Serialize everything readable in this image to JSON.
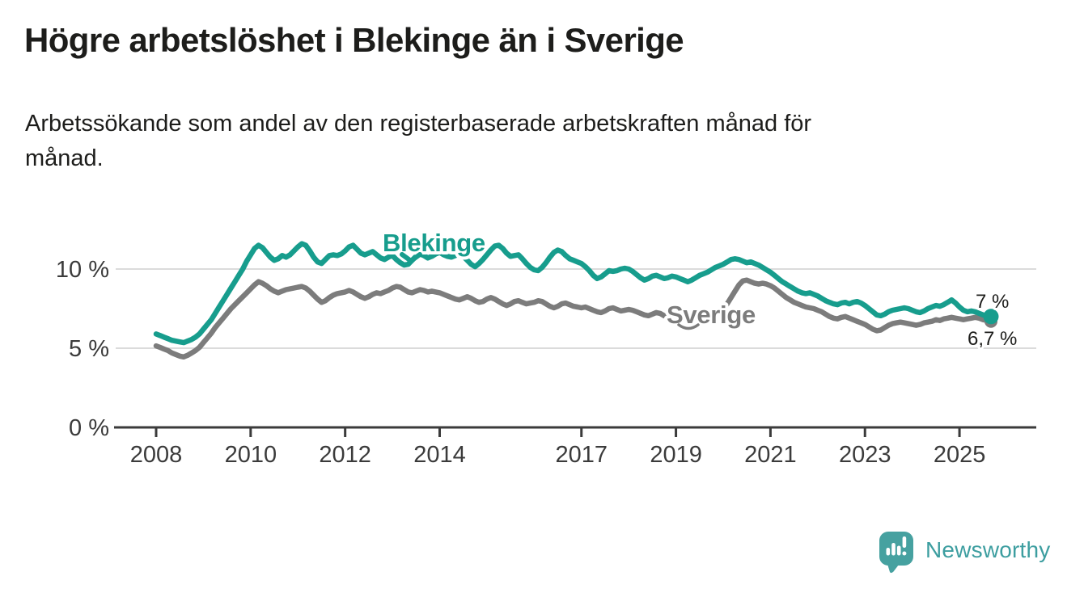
{
  "header": {
    "title": "Högre arbetslöshet i Blekinge än i Sverige",
    "subtitle_line1": "Arbetssökande som andel av den registerbaserade arbetskraften månad för",
    "subtitle_line2": "månad."
  },
  "chart_data": {
    "type": "line",
    "title": "Högre arbetslöshet i Blekinge än i Sverige",
    "subtitle": "Arbetssökande som andel av den registerbaserade arbetskraften månad för månad.",
    "unit": "%",
    "grid": "horizontal",
    "legend_position": "inline-labels-on-lines",
    "x_axis": {
      "interval": "monthly",
      "start_year": 2008,
      "start_month": 1,
      "end_year": 2025,
      "end_month": 9,
      "ticks": [
        {
          "year": 2008,
          "label": "2008"
        },
        {
          "year": 2010,
          "label": "2010"
        },
        {
          "year": 2012,
          "label": "2012"
        },
        {
          "year": 2014,
          "label": "2014"
        },
        {
          "year": 2017,
          "label": "2017"
        },
        {
          "year": 2019,
          "label": "2019"
        },
        {
          "year": 2021,
          "label": "2021"
        },
        {
          "year": 2023,
          "label": "2023"
        },
        {
          "year": 2025,
          "label": "2025"
        }
      ]
    },
    "y_axis": {
      "range": [
        0,
        12.5
      ],
      "ticks": [
        {
          "value": 10,
          "label": "10 %"
        },
        {
          "value": 5,
          "label": "5 %"
        },
        {
          "value": 0,
          "label": "0 %"
        }
      ]
    },
    "series": [
      {
        "name": "Blekinge",
        "color": "#179d8d",
        "end_label": "7 %",
        "end_value": 7.0,
        "end_dot_radius": 9.5,
        "values": [
          5.9,
          5.8,
          5.7,
          5.6,
          5.5,
          5.45,
          5.4,
          5.35,
          5.45,
          5.55,
          5.7,
          5.9,
          6.2,
          6.5,
          6.8,
          7.2,
          7.6,
          8.0,
          8.4,
          8.8,
          9.2,
          9.6,
          10.0,
          10.5,
          10.9,
          11.3,
          11.5,
          11.35,
          11.05,
          10.75,
          10.55,
          10.65,
          10.85,
          10.75,
          10.9,
          11.15,
          11.4,
          11.6,
          11.5,
          11.15,
          10.75,
          10.45,
          10.35,
          10.6,
          10.85,
          10.9,
          10.85,
          10.95,
          11.15,
          11.4,
          11.5,
          11.25,
          11.0,
          10.9,
          11.0,
          11.1,
          10.9,
          10.7,
          10.6,
          10.75,
          10.85,
          10.6,
          10.4,
          10.25,
          10.3,
          10.55,
          10.8,
          10.95,
          10.85,
          10.7,
          10.8,
          10.95,
          11.05,
          10.9,
          10.8,
          10.75,
          10.85,
          10.95,
          10.8,
          10.55,
          10.3,
          10.15,
          10.35,
          10.6,
          10.9,
          11.2,
          11.45,
          11.5,
          11.3,
          11.0,
          10.8,
          10.85,
          10.9,
          10.65,
          10.35,
          10.1,
          9.95,
          9.9,
          10.1,
          10.4,
          10.75,
          11.05,
          11.2,
          11.1,
          10.85,
          10.65,
          10.55,
          10.45,
          10.35,
          10.15,
          9.9,
          9.6,
          9.4,
          9.5,
          9.7,
          9.9,
          9.85,
          9.9,
          10.0,
          10.05,
          10.0,
          9.85,
          9.65,
          9.45,
          9.3,
          9.4,
          9.55,
          9.6,
          9.5,
          9.4,
          9.45,
          9.55,
          9.5,
          9.4,
          9.3,
          9.2,
          9.3,
          9.45,
          9.6,
          9.7,
          9.8,
          9.95,
          10.1,
          10.2,
          10.3,
          10.45,
          10.6,
          10.65,
          10.6,
          10.5,
          10.4,
          10.45,
          10.35,
          10.25,
          10.1,
          9.95,
          9.8,
          9.6,
          9.4,
          9.2,
          9.05,
          8.9,
          8.75,
          8.6,
          8.5,
          8.45,
          8.5,
          8.4,
          8.3,
          8.15,
          8.0,
          7.9,
          7.8,
          7.75,
          7.85,
          7.9,
          7.8,
          7.9,
          7.95,
          7.85,
          7.7,
          7.5,
          7.3,
          7.1,
          7.05,
          7.15,
          7.3,
          7.4,
          7.45,
          7.5,
          7.55,
          7.5,
          7.4,
          7.3,
          7.25,
          7.35,
          7.5,
          7.6,
          7.7,
          7.65,
          7.75,
          7.9,
          8.05,
          7.85,
          7.6,
          7.4,
          7.3,
          7.35,
          7.3,
          7.2,
          7.1,
          7.05,
          7.0
        ]
      },
      {
        "name": "Sverige",
        "color": "#7c7c7c",
        "end_label": "6,7 %",
        "end_value": 6.7,
        "end_dot_radius": 8,
        "values": [
          5.15,
          5.05,
          4.95,
          4.85,
          4.7,
          4.6,
          4.5,
          4.45,
          4.55,
          4.7,
          4.85,
          5.05,
          5.35,
          5.65,
          5.95,
          6.3,
          6.6,
          6.9,
          7.2,
          7.5,
          7.75,
          8.0,
          8.25,
          8.5,
          8.75,
          9.0,
          9.2,
          9.1,
          8.95,
          8.75,
          8.6,
          8.5,
          8.6,
          8.7,
          8.75,
          8.8,
          8.85,
          8.9,
          8.8,
          8.6,
          8.35,
          8.1,
          7.9,
          8.0,
          8.2,
          8.35,
          8.45,
          8.5,
          8.55,
          8.65,
          8.55,
          8.4,
          8.25,
          8.15,
          8.25,
          8.4,
          8.5,
          8.45,
          8.55,
          8.65,
          8.8,
          8.9,
          8.85,
          8.7,
          8.55,
          8.5,
          8.6,
          8.7,
          8.65,
          8.55,
          8.6,
          8.55,
          8.5,
          8.4,
          8.3,
          8.2,
          8.1,
          8.05,
          8.15,
          8.25,
          8.15,
          8.0,
          7.9,
          7.95,
          8.1,
          8.2,
          8.1,
          7.95,
          7.8,
          7.7,
          7.8,
          7.95,
          8.0,
          7.9,
          7.8,
          7.85,
          7.9,
          8.0,
          7.95,
          7.8,
          7.65,
          7.55,
          7.65,
          7.8,
          7.85,
          7.75,
          7.65,
          7.6,
          7.55,
          7.6,
          7.5,
          7.4,
          7.3,
          7.25,
          7.35,
          7.5,
          7.55,
          7.45,
          7.35,
          7.4,
          7.45,
          7.4,
          7.3,
          7.2,
          7.1,
          7.05,
          7.15,
          7.25,
          7.2,
          7.05,
          7.0,
          7.0,
          7.0,
          6.95,
          6.95,
          6.9,
          6.95,
          7.0,
          7.0,
          7.0,
          7.0,
          7.05,
          7.15,
          7.3,
          7.5,
          7.8,
          8.2,
          8.6,
          9.0,
          9.25,
          9.3,
          9.2,
          9.1,
          9.05,
          9.1,
          9.05,
          8.95,
          8.8,
          8.6,
          8.4,
          8.2,
          8.05,
          7.9,
          7.8,
          7.7,
          7.6,
          7.55,
          7.5,
          7.4,
          7.3,
          7.15,
          7.0,
          6.9,
          6.85,
          6.95,
          7.0,
          6.9,
          6.8,
          6.7,
          6.6,
          6.5,
          6.35,
          6.2,
          6.1,
          6.15,
          6.3,
          6.45,
          6.55,
          6.6,
          6.65,
          6.6,
          6.55,
          6.5,
          6.45,
          6.5,
          6.6,
          6.65,
          6.7,
          6.8,
          6.75,
          6.85,
          6.9,
          6.95,
          6.9,
          6.85,
          6.8,
          6.85,
          6.9,
          6.95,
          6.9,
          6.8,
          6.75,
          6.7
        ]
      }
    ]
  },
  "footer": {
    "brand": "Newsworthy"
  },
  "colors": {
    "accent_teal": "#179d8d",
    "series_gray": "#7c7c7c",
    "grid": "#dbdbdb",
    "axis": "#3b3b3b",
    "text": "#1d1d1b",
    "logo_teal": "#46a1a0"
  }
}
